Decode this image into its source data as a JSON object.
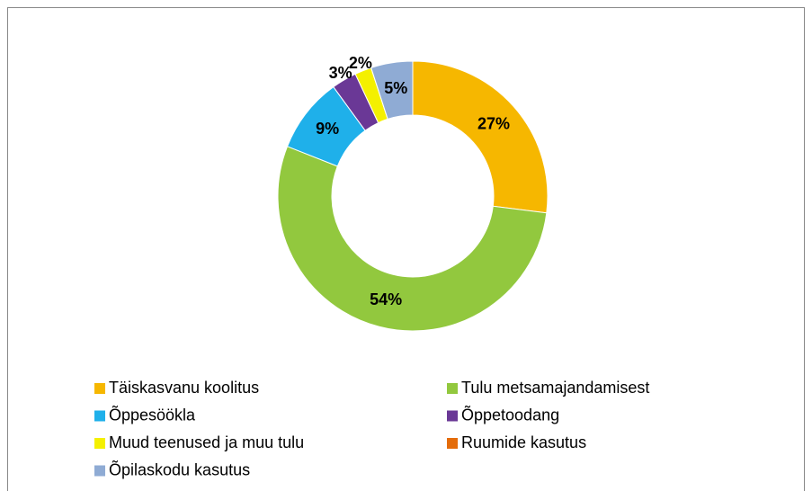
{
  "chart_data": {
    "type": "donut",
    "categories": [
      "Täiskasvanu koolitus",
      "Tulu metsamajandamisest",
      "Õppesöökla",
      "Õppetoodang",
      "Muud teenused ja muu tulu",
      "Ruumide kasutus",
      "Õpilaskodu kasutus"
    ],
    "values": [
      27,
      54,
      9,
      3,
      2,
      0,
      5
    ],
    "value_labels": [
      "27%",
      "54%",
      "9%",
      "3%",
      "2%",
      null,
      "5%"
    ],
    "colors": [
      "#f6b700",
      "#92c83e",
      "#1fb0ea",
      "#6a3896",
      "#f4f000",
      "#e46c0a",
      "#8fabd4"
    ],
    "legend": "bottom"
  }
}
